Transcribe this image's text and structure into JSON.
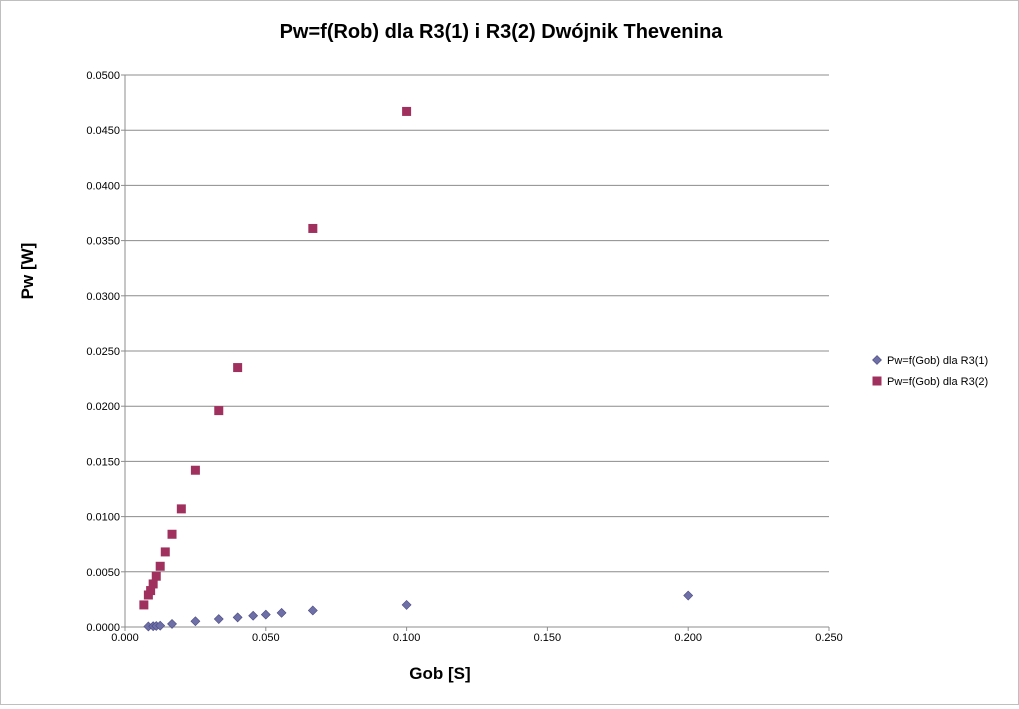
{
  "chart_data": {
    "type": "scatter",
    "title": "Pw=f(Rob) dla R3(1) i R3(2) Dwójnik Thevenina",
    "xlabel": "Gob [S]",
    "ylabel": "Pw [W]",
    "xlim": [
      0,
      0.25
    ],
    "ylim": [
      0,
      0.05
    ],
    "xticks": [
      "0.000",
      "0.050",
      "0.100",
      "0.150",
      "0.200",
      "0.250"
    ],
    "yticks": [
      "0.0000",
      "0.0050",
      "0.0100",
      "0.0150",
      "0.0200",
      "0.0250",
      "0.0300",
      "0.0350",
      "0.0400",
      "0.0450",
      "0.0500"
    ],
    "grid": true,
    "legend_position": "right",
    "series": [
      {
        "name": "Pw=f(Gob) dla R3(1)",
        "marker": "diamond",
        "color": "#6f6fa8",
        "x": [
          0.0083,
          0.01,
          0.0111,
          0.0125,
          0.0167,
          0.025,
          0.0333,
          0.04,
          0.0455,
          0.05,
          0.0556,
          0.0667,
          0.1,
          0.2
        ],
        "y": [
          5e-05,
          7e-05,
          9e-05,
          0.00012,
          0.00028,
          0.00052,
          0.00072,
          0.00087,
          0.00102,
          0.00112,
          0.00128,
          0.0015,
          0.002,
          0.00285
        ]
      },
      {
        "name": "Pw=f(Gob) dla R3(2)",
        "marker": "square",
        "color": "#a0305e",
        "x": [
          0.0067,
          0.0083,
          0.0091,
          0.01,
          0.0111,
          0.0125,
          0.0143,
          0.0167,
          0.02,
          0.025,
          0.0333,
          0.04,
          0.0667,
          0.1
        ],
        "y": [
          0.002,
          0.0029,
          0.0033,
          0.0039,
          0.0046,
          0.0055,
          0.0068,
          0.0084,
          0.0107,
          0.0142,
          0.0196,
          0.0235,
          0.0361,
          0.0467
        ]
      }
    ]
  }
}
